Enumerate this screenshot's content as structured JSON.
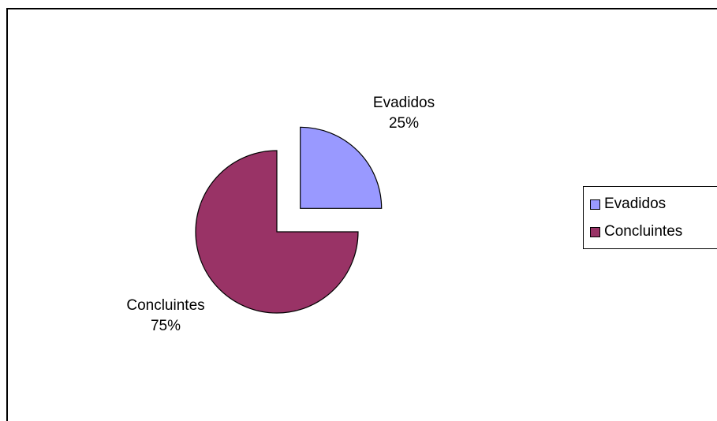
{
  "chart_data": {
    "type": "pie",
    "categories": [
      "Evadidos",
      "Concluintes"
    ],
    "values": [
      25,
      75
    ],
    "labels": [
      {
        "name": "Evadidos",
        "percent": "25%"
      },
      {
        "name": "Concluintes",
        "percent": "75%"
      }
    ],
    "colors": [
      "#9999ff",
      "#993366"
    ],
    "exploded": [
      "Evadidos"
    ],
    "legend": {
      "placement": "right",
      "entries": [
        "Evadidos",
        "Concluintes"
      ]
    }
  }
}
